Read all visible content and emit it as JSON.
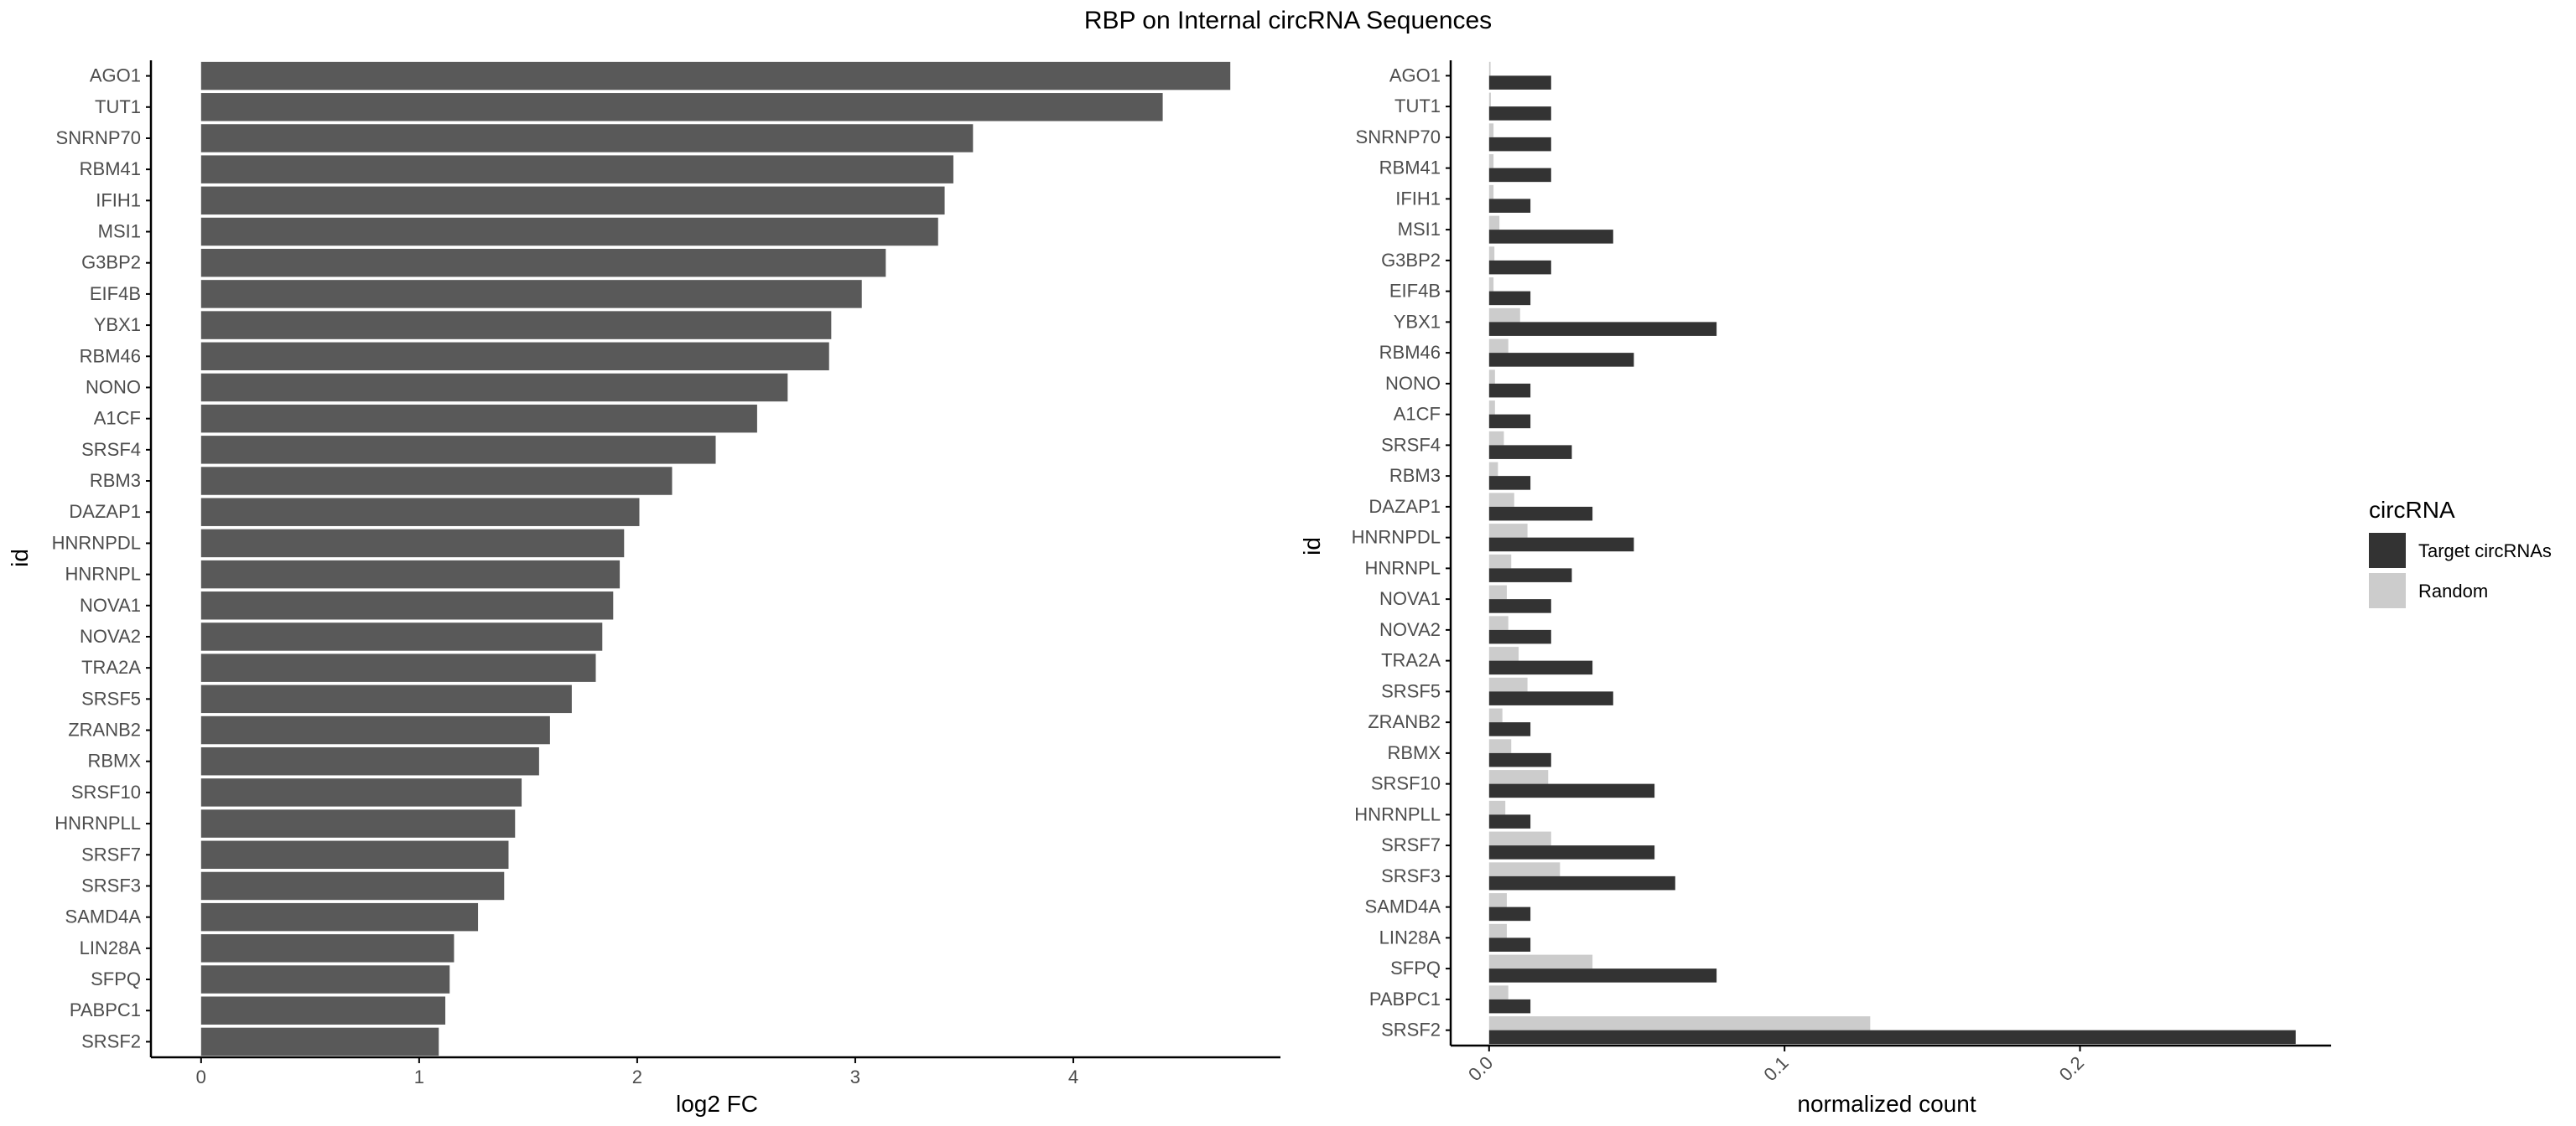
{
  "title": "RBP on Internal circRNA Sequences",
  "colors": {
    "left_bar": "#595959",
    "target": "#333333",
    "random": "#cccccc",
    "axis": "#000000"
  },
  "chart_data": [
    {
      "type": "bar",
      "orientation": "horizontal",
      "xlabel": "log2 FC",
      "ylabel": "id",
      "xlim": [
        -0.23,
        4.95
      ],
      "xticks": [
        0,
        1,
        2,
        3,
        4
      ],
      "grid": false,
      "categories": [
        "AGO1",
        "TUT1",
        "SNRNP70",
        "RBM41",
        "IFIH1",
        "MSI1",
        "G3BP2",
        "EIF4B",
        "YBX1",
        "RBM46",
        "NONO",
        "A1CF",
        "SRSF4",
        "RBM3",
        "DAZAP1",
        "HNRNPDL",
        "HNRNPL",
        "NOVA1",
        "NOVA2",
        "TRA2A",
        "SRSF5",
        "ZRANB2",
        "RBMX",
        "SRSF10",
        "HNRNPLL",
        "SRSF7",
        "SRSF3",
        "SAMD4A",
        "LIN28A",
        "SFPQ",
        "PABPC1",
        "SRSF2"
      ],
      "values": [
        4.72,
        4.41,
        3.54,
        3.45,
        3.41,
        3.38,
        3.14,
        3.03,
        2.89,
        2.88,
        2.69,
        2.55,
        2.36,
        2.16,
        2.01,
        1.94,
        1.92,
        1.89,
        1.84,
        1.81,
        1.7,
        1.6,
        1.55,
        1.47,
        1.44,
        1.41,
        1.39,
        1.27,
        1.16,
        1.14,
        1.12,
        1.09
      ]
    },
    {
      "type": "bar",
      "orientation": "horizontal",
      "xlabel": "normalized count",
      "ylabel": "id",
      "xlim": [
        -0.013,
        0.285
      ],
      "xticks": [
        0.0,
        0.1,
        0.2
      ],
      "xtick_labels": [
        "0.0",
        "0.1",
        "0.2"
      ],
      "grid": false,
      "legend": {
        "title": "circRNA",
        "placement": "right"
      },
      "categories": [
        "AGO1",
        "TUT1",
        "SNRNP70",
        "RBM41",
        "IFIH1",
        "MSI1",
        "G3BP2",
        "EIF4B",
        "YBX1",
        "RBM46",
        "NONO",
        "A1CF",
        "SRSF4",
        "RBM3",
        "DAZAP1",
        "HNRNPDL",
        "HNRNPL",
        "NOVA1",
        "NOVA2",
        "TRA2A",
        "SRSF5",
        "ZRANB2",
        "RBMX",
        "SRSF10",
        "HNRNPLL",
        "SRSF7",
        "SRSF3",
        "SAMD4A",
        "LIN28A",
        "SFPQ",
        "PABPC1",
        "SRSF2"
      ],
      "series": [
        {
          "name": "Target circRNAs",
          "color": "#333333",
          "values": [
            0.021,
            0.021,
            0.021,
            0.021,
            0.014,
            0.042,
            0.021,
            0.014,
            0.077,
            0.049,
            0.014,
            0.014,
            0.028,
            0.014,
            0.035,
            0.049,
            0.028,
            0.021,
            0.021,
            0.035,
            0.042,
            0.014,
            0.021,
            0.056,
            0.014,
            0.056,
            0.063,
            0.014,
            0.014,
            0.077,
            0.014,
            0.273
          ]
        },
        {
          "name": "Random",
          "color": "#cccccc",
          "values": [
            0.0005,
            0.0006,
            0.0015,
            0.0015,
            0.0015,
            0.0035,
            0.0018,
            0.0015,
            0.0105,
            0.0065,
            0.002,
            0.002,
            0.005,
            0.003,
            0.0085,
            0.013,
            0.0075,
            0.006,
            0.0065,
            0.01,
            0.013,
            0.0045,
            0.0075,
            0.02,
            0.0055,
            0.021,
            0.024,
            0.006,
            0.006,
            0.035,
            0.0065,
            0.129
          ]
        }
      ]
    }
  ]
}
